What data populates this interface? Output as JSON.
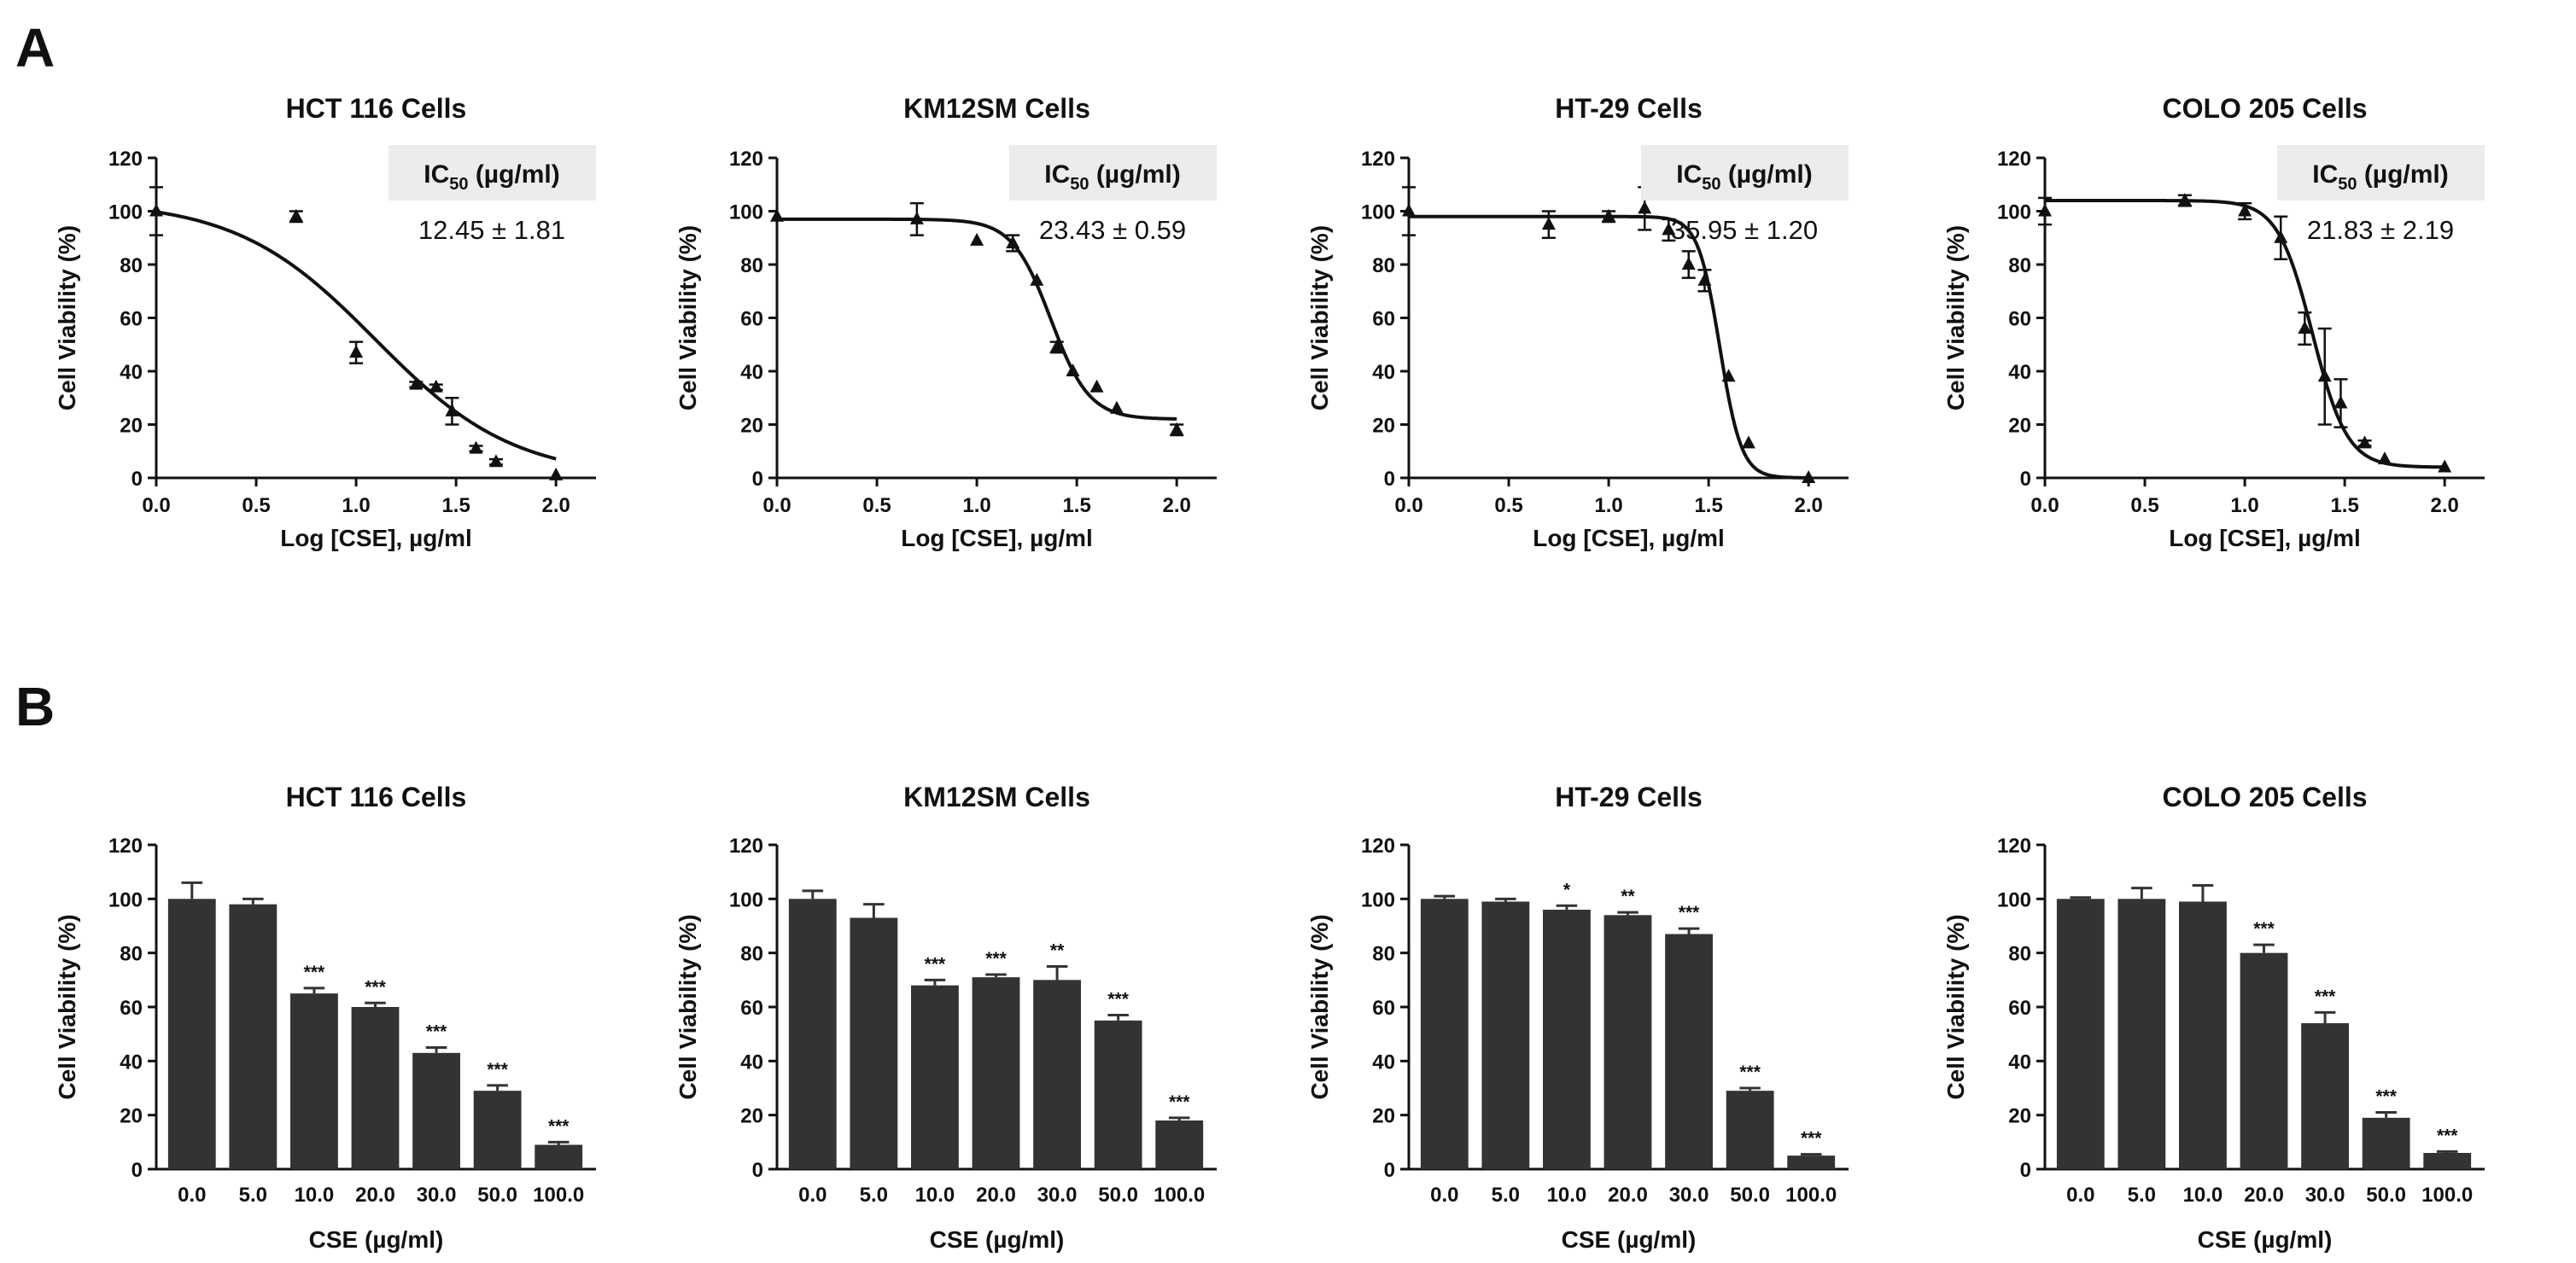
{
  "panel_labels": [
    "A",
    "B"
  ],
  "ic50_header": {
    "prefix": "IC",
    "sub": "50",
    "suffix": " (µg/ml)"
  },
  "colors": {
    "ink": "#111111",
    "bar": "#333333",
    "box": "#ececec"
  },
  "chart_data": [
    {
      "type": "line",
      "panel": "A",
      "title": "HCT 116 Cells",
      "xlabel": "Log [CSE], µg/ml",
      "ylabel": "Cell Viability (%)",
      "xlim": [
        0,
        2
      ],
      "ylim": [
        0,
        120
      ],
      "xticks": [
        "0.0",
        "0.5",
        "1.0",
        "1.5",
        "2.0"
      ],
      "yticks": [
        "0",
        "20",
        "40",
        "60",
        "80",
        "100",
        "120"
      ],
      "points": [
        {
          "x": 0.0,
          "y": 100,
          "err": 9
        },
        {
          "x": 0.7,
          "y": 98,
          "err": 2
        },
        {
          "x": 1.0,
          "y": 47,
          "err": 4
        },
        {
          "x": 1.3,
          "y": 35,
          "err": 1
        },
        {
          "x": 1.4,
          "y": 34,
          "err": 1
        },
        {
          "x": 1.48,
          "y": 25,
          "err": 5
        },
        {
          "x": 1.6,
          "y": 11,
          "err": 1
        },
        {
          "x": 1.7,
          "y": 6,
          "err": 1
        },
        {
          "x": 2.0,
          "y": 1,
          "err": 0
        }
      ],
      "fit": {
        "top": 104,
        "bottom": 0,
        "logic50": 1.095,
        "hill": 1.25
      },
      "ic50_value": "12.45 ± 1.81"
    },
    {
      "type": "line",
      "panel": "A",
      "title": "KM12SM Cells",
      "xlabel": "Log [CSE], µg/ml",
      "ylabel": "Cell Viability (%)",
      "xlim": [
        0,
        2
      ],
      "ylim": [
        0,
        120
      ],
      "xticks": [
        "0.0",
        "0.5",
        "1.0",
        "1.5",
        "2.0"
      ],
      "yticks": [
        "0",
        "20",
        "40",
        "60",
        "80",
        "100",
        "120"
      ],
      "points": [
        {
          "x": 0.0,
          "y": 98,
          "err": 0
        },
        {
          "x": 0.7,
          "y": 97,
          "err": 6
        },
        {
          "x": 1.0,
          "y": 89,
          "err": 0
        },
        {
          "x": 1.18,
          "y": 88,
          "err": 3
        },
        {
          "x": 1.3,
          "y": 74,
          "err": 0
        },
        {
          "x": 1.4,
          "y": 49,
          "err": 2
        },
        {
          "x": 1.48,
          "y": 40,
          "err": 0
        },
        {
          "x": 1.6,
          "y": 34,
          "err": 0
        },
        {
          "x": 1.7,
          "y": 26,
          "err": 0
        },
        {
          "x": 2.0,
          "y": 18,
          "err": 2
        }
      ],
      "fit": {
        "top": 97,
        "bottom": 22,
        "logic50": 1.37,
        "hill": 4.5
      },
      "ic50_value": "23.43 ± 0.59"
    },
    {
      "type": "line",
      "panel": "A",
      "title": "HT-29 Cells",
      "xlabel": "Log [CSE], µg/ml",
      "ylabel": "Cell Viability (%)",
      "xlim": [
        0,
        2
      ],
      "ylim": [
        0,
        120
      ],
      "xticks": [
        "0.0",
        "0.5",
        "1.0",
        "1.5",
        "2.0"
      ],
      "yticks": [
        "0",
        "20",
        "40",
        "60",
        "80",
        "100",
        "120"
      ],
      "points": [
        {
          "x": 0.0,
          "y": 100,
          "err": 9
        },
        {
          "x": 0.7,
          "y": 95,
          "err": 5
        },
        {
          "x": 1.0,
          "y": 98,
          "err": 2
        },
        {
          "x": 1.18,
          "y": 101,
          "err": 8
        },
        {
          "x": 1.3,
          "y": 93,
          "err": 4
        },
        {
          "x": 1.4,
          "y": 80,
          "err": 5
        },
        {
          "x": 1.48,
          "y": 74,
          "err": 4
        },
        {
          "x": 1.6,
          "y": 38,
          "err": 0
        },
        {
          "x": 1.7,
          "y": 13,
          "err": 0
        },
        {
          "x": 2.0,
          "y": 0,
          "err": 0
        }
      ],
      "fit": {
        "top": 98,
        "bottom": 0,
        "logic50": 1.556,
        "hill": 8
      },
      "ic50_value": "35.95 ± 1.20"
    },
    {
      "type": "line",
      "panel": "A",
      "title": "COLO 205 Cells",
      "xlabel": "Log [CSE], µg/ml",
      "ylabel": "Cell Viability (%)",
      "xlim": [
        0,
        2
      ],
      "ylim": [
        0,
        120
      ],
      "xticks": [
        "0.0",
        "0.5",
        "1.0",
        "1.5",
        "2.0"
      ],
      "yticks": [
        "0",
        "20",
        "40",
        "60",
        "80",
        "100",
        "120"
      ],
      "points": [
        {
          "x": 0.0,
          "y": 100,
          "err": 5
        },
        {
          "x": 0.7,
          "y": 104,
          "err": 2
        },
        {
          "x": 1.0,
          "y": 100,
          "err": 3
        },
        {
          "x": 1.18,
          "y": 90,
          "err": 8
        },
        {
          "x": 1.3,
          "y": 56,
          "err": 6
        },
        {
          "x": 1.4,
          "y": 38,
          "err": 18
        },
        {
          "x": 1.48,
          "y": 28,
          "err": 9
        },
        {
          "x": 1.6,
          "y": 13,
          "err": 1
        },
        {
          "x": 1.7,
          "y": 7,
          "err": 0
        },
        {
          "x": 2.0,
          "y": 4,
          "err": 0
        }
      ],
      "fit": {
        "top": 104,
        "bottom": 4,
        "logic50": 1.339,
        "hill": 5
      },
      "ic50_value": "21.83 ± 2.19"
    },
    {
      "type": "bar",
      "panel": "B",
      "title": "HCT 116 Cells",
      "xlabel": "CSE (µg/ml)",
      "ylabel": "Cell Viability (%)",
      "ylim": [
        0,
        120
      ],
      "yticks": [
        "0",
        "20",
        "40",
        "60",
        "80",
        "100",
        "120"
      ],
      "categories": [
        "0.0",
        "5.0",
        "10.0",
        "20.0",
        "30.0",
        "50.0",
        "100.0"
      ],
      "values": [
        100,
        98,
        65,
        60,
        43,
        29,
        9
      ],
      "errors": [
        6,
        2,
        2,
        1.5,
        2,
        2,
        1
      ],
      "significance": [
        "",
        "",
        "***",
        "***",
        "***",
        "***",
        "***"
      ]
    },
    {
      "type": "bar",
      "panel": "B",
      "title": "KM12SM Cells",
      "xlabel": "CSE (µg/ml)",
      "ylabel": "Cell Viability (%)",
      "ylim": [
        0,
        120
      ],
      "yticks": [
        "0",
        "20",
        "40",
        "60",
        "80",
        "100",
        "120"
      ],
      "categories": [
        "0.0",
        "5.0",
        "10.0",
        "20.0",
        "30.0",
        "50.0",
        "100.0"
      ],
      "values": [
        100,
        93,
        68,
        71,
        70,
        55,
        18
      ],
      "errors": [
        3,
        5,
        2,
        1,
        5,
        2,
        1
      ],
      "significance": [
        "",
        "",
        "***",
        "***",
        "**",
        "***",
        "***"
      ]
    },
    {
      "type": "bar",
      "panel": "B",
      "title": "HT-29 Cells",
      "xlabel": "CSE (µg/ml)",
      "ylabel": "Cell Viability (%)",
      "ylim": [
        0,
        120
      ],
      "yticks": [
        "0",
        "20",
        "40",
        "60",
        "80",
        "100",
        "120"
      ],
      "categories": [
        "0.0",
        "5.0",
        "10.0",
        "20.0",
        "30.0",
        "50.0",
        "100.0"
      ],
      "values": [
        100,
        99,
        96,
        94,
        87,
        29,
        5
      ],
      "errors": [
        1,
        1,
        1.5,
        1,
        2,
        1,
        0.5
      ],
      "significance": [
        "",
        "",
        "*",
        "**",
        "***",
        "***",
        "***"
      ]
    },
    {
      "type": "bar",
      "panel": "B",
      "title": "COLO 205 Cells",
      "xlabel": "CSE (µg/ml)",
      "ylabel": "Cell Viability (%)",
      "ylim": [
        0,
        120
      ],
      "yticks": [
        "0",
        "20",
        "40",
        "60",
        "80",
        "100",
        "120"
      ],
      "categories": [
        "0.0",
        "5.0",
        "10.0",
        "20.0",
        "30.0",
        "50.0",
        "100.0"
      ],
      "values": [
        100,
        100,
        99,
        80,
        54,
        19,
        6
      ],
      "errors": [
        0.5,
        4,
        6,
        3,
        4,
        2,
        0.5
      ],
      "significance": [
        "",
        "",
        "",
        "***",
        "***",
        "***",
        "***"
      ]
    }
  ]
}
